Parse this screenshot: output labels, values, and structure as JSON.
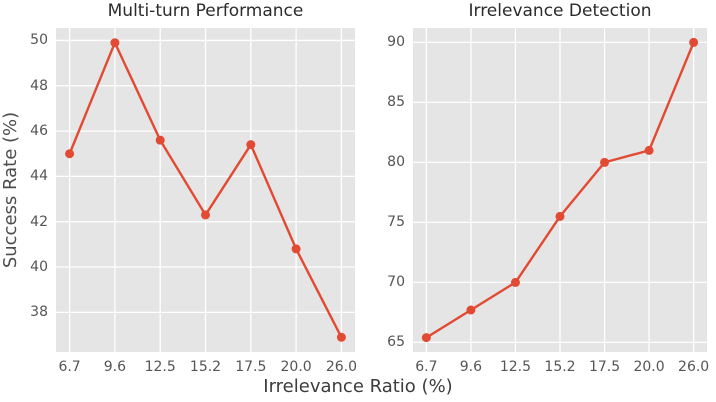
{
  "figure": {
    "ylabel": "Success Rate (%)",
    "xlabel": "Irrelevance Ratio (%)"
  },
  "colors": {
    "line": "#e24a33",
    "marker": "#e24a33",
    "plot_background": "#e5e5e5",
    "grid": "#ffffff",
    "tick_text": "#555555",
    "title_text": "#2b2b2b"
  },
  "chart_data": [
    {
      "type": "line",
      "title": "Multi-turn Performance",
      "categories": [
        "6.7",
        "9.6",
        "12.5",
        "15.2",
        "17.5",
        "20.0",
        "26.0"
      ],
      "values": [
        45.0,
        49.9,
        45.6,
        42.3,
        45.4,
        40.8,
        36.9
      ],
      "xlabel": "Irrelevance Ratio (%)",
      "ylabel": "Success Rate (%)",
      "yticks": [
        38,
        40,
        42,
        44,
        46,
        48,
        50
      ],
      "ylim": [
        36.25,
        50.55
      ],
      "grid": true,
      "legend": "none"
    },
    {
      "type": "line",
      "title": "Irrelevance Detection",
      "categories": [
        "6.7",
        "9.6",
        "12.5",
        "15.2",
        "17.5",
        "20.0",
        "26.0"
      ],
      "values": [
        65.4,
        67.7,
        70.0,
        75.5,
        80.0,
        81.0,
        90.0
      ],
      "xlabel": "Irrelevance Ratio (%)",
      "ylabel": "",
      "yticks": [
        65,
        70,
        75,
        80,
        85,
        90
      ],
      "ylim": [
        64.2,
        91.2
      ],
      "grid": true,
      "legend": "none"
    }
  ]
}
